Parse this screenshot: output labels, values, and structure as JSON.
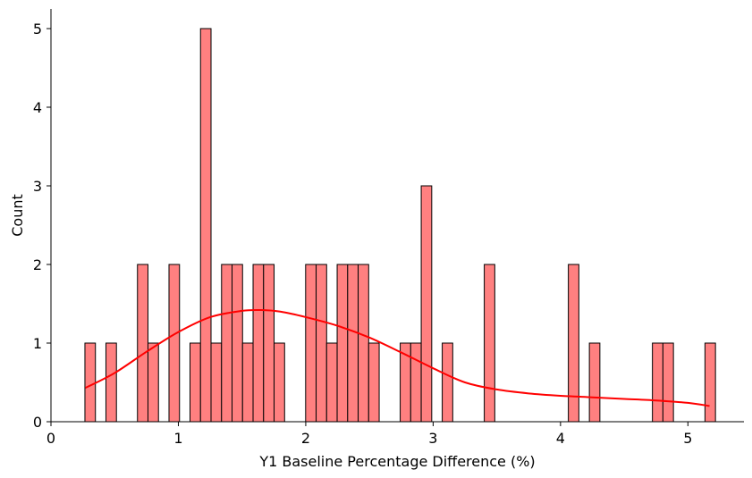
{
  "chart_data": {
    "type": "bar",
    "subtype": "histogram-with-kde",
    "xlabel": "Y1 Baseline Percentage Difference (%)",
    "ylabel": "Count",
    "xlim": [
      0,
      5.44
    ],
    "ylim": [
      0,
      5.25
    ],
    "x_ticks": [
      0,
      1,
      2,
      3,
      4,
      5
    ],
    "y_ticks": [
      0,
      1,
      2,
      3,
      4,
      5
    ],
    "grid": false,
    "bin_width": 0.0825,
    "bins": [
      {
        "x0": 0.2665,
        "count": 1
      },
      {
        "x0": 0.4315,
        "count": 1
      },
      {
        "x0": 0.679,
        "count": 2
      },
      {
        "x0": 0.7615,
        "count": 1
      },
      {
        "x0": 0.9265,
        "count": 2
      },
      {
        "x0": 1.0915,
        "count": 1
      },
      {
        "x0": 1.174,
        "count": 5
      },
      {
        "x0": 1.2565,
        "count": 1
      },
      {
        "x0": 1.339,
        "count": 2
      },
      {
        "x0": 1.4215,
        "count": 2
      },
      {
        "x0": 1.504,
        "count": 1
      },
      {
        "x0": 1.5865,
        "count": 2
      },
      {
        "x0": 1.669,
        "count": 2
      },
      {
        "x0": 1.7515,
        "count": 1
      },
      {
        "x0": 1.999,
        "count": 2
      },
      {
        "x0": 2.0815,
        "count": 2
      },
      {
        "x0": 2.164,
        "count": 1
      },
      {
        "x0": 2.2465,
        "count": 2
      },
      {
        "x0": 2.329,
        "count": 2
      },
      {
        "x0": 2.4115,
        "count": 2
      },
      {
        "x0": 2.494,
        "count": 1
      },
      {
        "x0": 2.7415,
        "count": 1
      },
      {
        "x0": 2.824,
        "count": 1
      },
      {
        "x0": 2.9065,
        "count": 3
      },
      {
        "x0": 3.0715,
        "count": 1
      },
      {
        "x0": 3.4015,
        "count": 2
      },
      {
        "x0": 4.0615,
        "count": 2
      },
      {
        "x0": 4.2265,
        "count": 1
      },
      {
        "x0": 4.7215,
        "count": 1
      },
      {
        "x0": 4.804,
        "count": 1
      },
      {
        "x0": 5.134,
        "count": 1
      }
    ],
    "kde": {
      "color": "#ff0000",
      "x": [
        0.27,
        0.5,
        0.75,
        1.0,
        1.25,
        1.5,
        1.65,
        1.8,
        2.0,
        2.25,
        2.5,
        2.75,
        3.0,
        3.25,
        3.5,
        3.75,
        4.0,
        4.25,
        4.5,
        4.75,
        5.0,
        5.17
      ],
      "y": [
        0.43,
        0.62,
        0.89,
        1.14,
        1.33,
        1.41,
        1.42,
        1.4,
        1.33,
        1.22,
        1.07,
        0.88,
        0.68,
        0.5,
        0.41,
        0.36,
        0.33,
        0.31,
        0.29,
        0.27,
        0.24,
        0.2
      ]
    },
    "bar_fill": "#ff8080",
    "bar_edge": "#000000"
  }
}
